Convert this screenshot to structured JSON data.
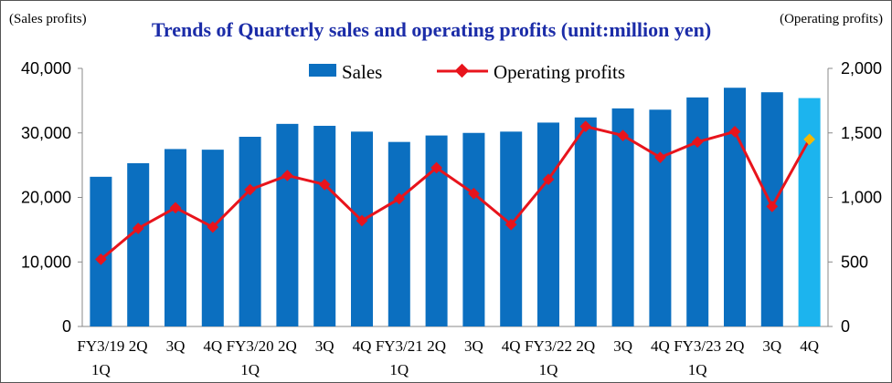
{
  "chart_data": {
    "type": "bar+line",
    "title": "Trends of Quarterly sales and operating profits (unit:million yen)",
    "left_axis_label": "(Sales profits)",
    "right_axis_label": "(Operating profits)",
    "y_left_range": [
      0,
      40000
    ],
    "y_left_ticks": [
      "0",
      "10,000",
      "20,000",
      "30,000",
      "40,000"
    ],
    "y_right_range": [
      0,
      2000
    ],
    "y_right_ticks": [
      "0",
      "500",
      "1,000",
      "1,500",
      "2,000"
    ],
    "legend_position": "top",
    "categories": [
      [
        "FY3/19",
        "1Q"
      ],
      [
        "2Q",
        ""
      ],
      [
        "3Q",
        ""
      ],
      [
        "4Q",
        ""
      ],
      [
        "FY3/20",
        "1Q"
      ],
      [
        "2Q",
        ""
      ],
      [
        "3Q",
        ""
      ],
      [
        "4Q",
        ""
      ],
      [
        "FY3/21",
        "1Q"
      ],
      [
        "2Q",
        ""
      ],
      [
        "3Q",
        ""
      ],
      [
        "4Q",
        ""
      ],
      [
        "FY3/22",
        "1Q"
      ],
      [
        "2Q",
        ""
      ],
      [
        "3Q",
        ""
      ],
      [
        "4Q",
        ""
      ],
      [
        "FY3/23",
        "1Q"
      ],
      [
        "2Q",
        ""
      ],
      [
        "3Q",
        ""
      ],
      [
        "4Q",
        ""
      ]
    ],
    "series": [
      {
        "name": "Sales",
        "type": "bar",
        "axis": "left",
        "color": "#0b6fc0",
        "highlight_color": "#1cb4ee",
        "highlight_index": 19,
        "values": [
          23200,
          25300,
          27500,
          27400,
          29400,
          31400,
          31100,
          30200,
          28600,
          29600,
          30000,
          30200,
          31600,
          32400,
          33800,
          33600,
          35500,
          37000,
          36300,
          35400
        ]
      },
      {
        "name": "Operating profits",
        "type": "line",
        "axis": "right",
        "color": "#e8141c",
        "highlight_marker_color": "#f5b800",
        "highlight_index": 19,
        "values": [
          520,
          760,
          920,
          770,
          1060,
          1170,
          1100,
          820,
          990,
          1230,
          1030,
          790,
          1140,
          1550,
          1480,
          1310,
          1430,
          1510,
          930,
          1450
        ]
      }
    ]
  }
}
